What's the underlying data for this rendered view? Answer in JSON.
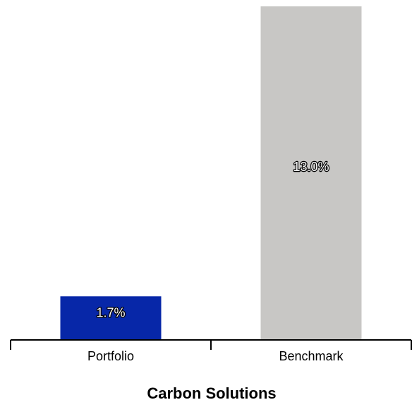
{
  "chart_data": {
    "type": "bar",
    "title": "Carbon Solutions",
    "xlabel": "",
    "ylabel": "",
    "categories": [
      "Portfolio",
      "Benchmark"
    ],
    "values": [
      1.7,
      13.0
    ],
    "data_labels": [
      "1.7%",
      "13.0%"
    ],
    "colors": [
      "#0727a8",
      "#c8c7c5"
    ],
    "ylim": [
      0,
      13.0
    ],
    "grid": false,
    "legend": "none"
  }
}
